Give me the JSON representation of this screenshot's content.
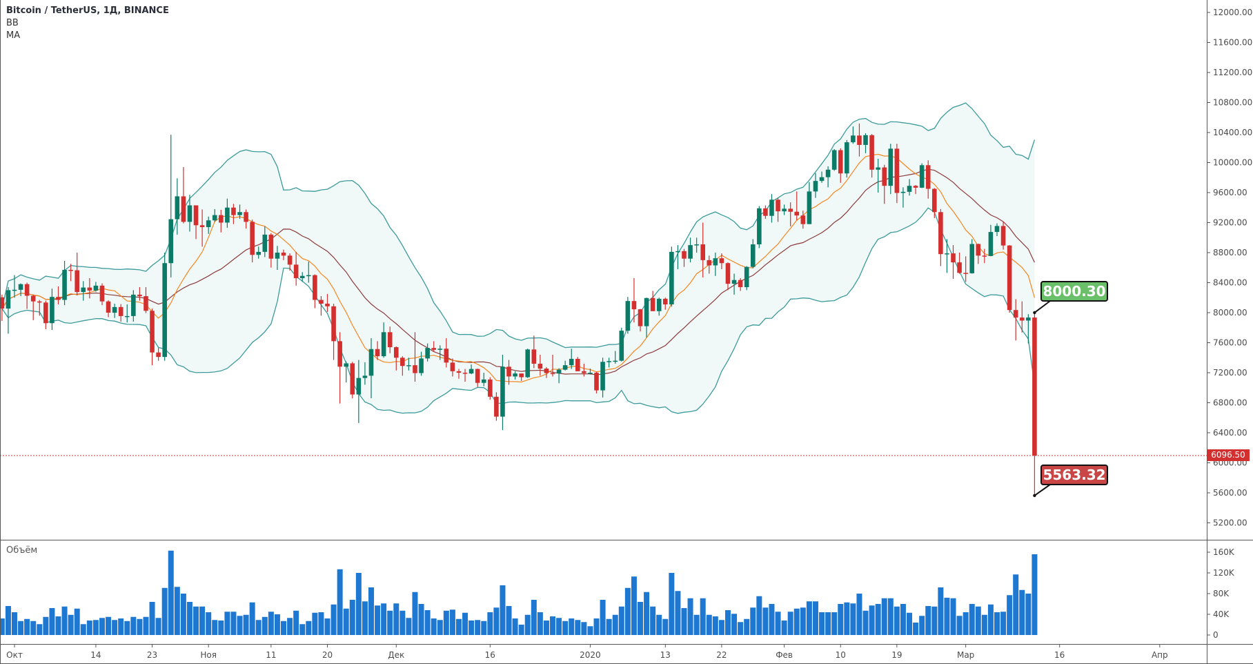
{
  "legend": {
    "title": "Bitcoin / TetherUS, 1Д, BINANCE",
    "bb": "BB",
    "ma": "MA"
  },
  "volume_title": "Объём",
  "colors": {
    "up": "#0b7b68",
    "down": "#d32f2f",
    "band_line": "#3b9a9a",
    "band_fill": "#f1f8f8",
    "ma_fast": "#f5861f",
    "ma_slow": "#8b3a3a",
    "volume": "#1e78d2",
    "last_price": "#d32f2f",
    "high_label": "#6abf69",
    "low_label": "#c94646"
  },
  "chart_data": {
    "type": "candlestick",
    "title": "Bitcoin / TetherUS, 1Д, BINANCE",
    "indicators": [
      "BB",
      "MA"
    ],
    "ylim": [
      5000,
      12200
    ],
    "y_ticks": [
      "5200.00",
      "5600.00",
      "6000.00",
      "6400.00",
      "6800.00",
      "7200.00",
      "7600.00",
      "8000.00",
      "8400.00",
      "8800.00",
      "9200.00",
      "9600.00",
      "10000.00",
      "10400.00",
      "10800.00",
      "11200.00",
      "11600.00",
      "12000.00"
    ],
    "volume_ticks": [
      "0",
      "40K",
      "80K",
      "120K",
      "160K"
    ],
    "x_ticks": [
      {
        "label": "Окт",
        "day": 2
      },
      {
        "label": "14",
        "day": 15
      },
      {
        "label": "23",
        "day": 24
      },
      {
        "label": "Ноя",
        "day": 33
      },
      {
        "label": "11",
        "day": 43
      },
      {
        "label": "20",
        "day": 52
      },
      {
        "label": "Дек",
        "day": 63
      },
      {
        "label": "16",
        "day": 78
      },
      {
        "label": "2020",
        "day": 94
      },
      {
        "label": "13",
        "day": 106
      },
      {
        "label": "22",
        "day": 115
      },
      {
        "label": "Фев",
        "day": 125
      },
      {
        "label": "10",
        "day": 134
      },
      {
        "label": "19",
        "day": 143
      },
      {
        "label": "Мар",
        "day": 154
      },
      {
        "label": "16",
        "day": 169
      },
      {
        "label": "Апр",
        "day": 185
      }
    ],
    "last_price": "6096.50",
    "high_label": "8000.30",
    "low_label": "5563.32",
    "ohlc": [
      [
        8205,
        8240,
        7890,
        8055
      ],
      [
        8055,
        8340,
        7720,
        8300
      ],
      [
        8300,
        8500,
        8200,
        8305
      ],
      [
        8305,
        8390,
        8220,
        8380
      ],
      [
        8380,
        8400,
        8050,
        8225
      ],
      [
        8225,
        8240,
        7900,
        8150
      ],
      [
        8150,
        8170,
        7960,
        8135
      ],
      [
        8135,
        8160,
        7780,
        7860
      ],
      [
        7860,
        8320,
        7770,
        8210
      ],
      [
        8210,
        8350,
        8110,
        8170
      ],
      [
        8170,
        8690,
        8100,
        8570
      ],
      [
        8570,
        8650,
        8420,
        8565
      ],
      [
        8565,
        8800,
        8230,
        8275
      ],
      [
        8275,
        8420,
        8160,
        8335
      ],
      [
        8335,
        8460,
        8190,
        8295
      ],
      [
        8295,
        8410,
        8280,
        8360
      ],
      [
        8360,
        8390,
        8100,
        8150
      ],
      [
        8150,
        8165,
        7940,
        8000
      ],
      [
        8000,
        8120,
        7930,
        8075
      ],
      [
        8075,
        8115,
        7880,
        7955
      ],
      [
        7955,
        8110,
        7870,
        7955
      ],
      [
        7955,
        8300,
        7880,
        8240
      ],
      [
        8240,
        8340,
        8160,
        8220
      ],
      [
        8220,
        8340,
        7995,
        8025
      ],
      [
        8025,
        8055,
        7300,
        7470
      ],
      [
        7470,
        7530,
        7360,
        7410
      ],
      [
        7410,
        8800,
        7360,
        8660
      ],
      [
        8660,
        10370,
        8470,
        9245
      ],
      [
        9245,
        9790,
        9040,
        9550
      ],
      [
        9550,
        9940,
        9190,
        9210
      ],
      [
        9210,
        9570,
        9080,
        9430
      ],
      [
        9430,
        9430,
        8980,
        9165
      ],
      [
        9165,
        9375,
        8880,
        9140
      ],
      [
        9140,
        9280,
        9050,
        9230
      ],
      [
        9230,
        9380,
        9210,
        9300
      ],
      [
        9300,
        9370,
        9070,
        9200
      ],
      [
        9200,
        9520,
        9130,
        9400
      ],
      [
        9400,
        9450,
        9180,
        9300
      ],
      [
        9300,
        9440,
        9250,
        9340
      ],
      [
        9340,
        9375,
        9120,
        9210
      ],
      [
        9210,
        9240,
        8670,
        8770
      ],
      [
        8770,
        8880,
        8720,
        8810
      ],
      [
        8810,
        9150,
        8740,
        9040
      ],
      [
        9040,
        9060,
        8600,
        8720
      ],
      [
        8720,
        8890,
        8570,
        8800
      ],
      [
        8800,
        8840,
        8700,
        8760
      ],
      [
        8760,
        8790,
        8560,
        8640
      ],
      [
        8640,
        8810,
        8360,
        8460
      ],
      [
        8460,
        8540,
        8410,
        8490
      ],
      [
        8490,
        8680,
        8400,
        8500
      ],
      [
        8500,
        8510,
        8060,
        8170
      ],
      [
        8170,
        8220,
        7960,
        8120
      ],
      [
        8120,
        8250,
        8010,
        8085
      ],
      [
        8085,
        8120,
        7370,
        7620
      ],
      [
        7620,
        7740,
        6790,
        7280
      ],
      [
        7280,
        7350,
        7070,
        7325
      ],
      [
        7325,
        7345,
        6860,
        6910
      ],
      [
        6910,
        7370,
        6530,
        7130
      ],
      [
        7130,
        7340,
        7040,
        7160
      ],
      [
        7160,
        7660,
        6860,
        7515
      ],
      [
        7515,
        7620,
        7370,
        7420
      ],
      [
        7420,
        7870,
        7400,
        7740
      ],
      [
        7740,
        7815,
        7460,
        7540
      ],
      [
        7540,
        7550,
        7230,
        7400
      ],
      [
        7400,
        7420,
        7160,
        7290
      ],
      [
        7290,
        7400,
        7230,
        7300
      ],
      [
        7300,
        7740,
        7080,
        7195
      ],
      [
        7195,
        7480,
        7160,
        7390
      ],
      [
        7390,
        7590,
        7350,
        7530
      ],
      [
        7530,
        7620,
        7480,
        7505
      ],
      [
        7505,
        7565,
        7370,
        7520
      ],
      [
        7520,
        7660,
        7270,
        7335
      ],
      [
        7335,
        7390,
        7150,
        7220
      ],
      [
        7220,
        7250,
        7120,
        7200
      ],
      [
        7200,
        7250,
        7080,
        7190
      ],
      [
        7190,
        7310,
        7180,
        7250
      ],
      [
        7250,
        7255,
        7010,
        7065
      ],
      [
        7065,
        7200,
        7020,
        7110
      ],
      [
        7110,
        7140,
        6840,
        6880
      ],
      [
        6880,
        6940,
        6560,
        6615
      ],
      [
        6615,
        7440,
        6435,
        7280
      ],
      [
        7280,
        7370,
        7040,
        7150
      ],
      [
        7150,
        7220,
        7110,
        7190
      ],
      [
        7190,
        7190,
        7090,
        7140
      ],
      [
        7140,
        7520,
        7130,
        7510
      ],
      [
        7510,
        7695,
        7260,
        7320
      ],
      [
        7320,
        7440,
        7160,
        7255
      ],
      [
        7255,
        7275,
        7130,
        7195
      ],
      [
        7195,
        7440,
        7150,
        7190
      ],
      [
        7190,
        7260,
        7060,
        7240
      ],
      [
        7240,
        7360,
        7230,
        7300
      ],
      [
        7300,
        7520,
        7250,
        7385
      ],
      [
        7385,
        7410,
        7220,
        7220
      ],
      [
        7220,
        7320,
        7150,
        7195
      ],
      [
        7195,
        7255,
        7175,
        7200
      ],
      [
        7200,
        7215,
        6925,
        6965
      ],
      [
        6965,
        7400,
        6870,
        7345
      ],
      [
        7345,
        7400,
        7270,
        7355
      ],
      [
        7355,
        7490,
        7320,
        7360
      ],
      [
        7360,
        7800,
        7350,
        7760
      ],
      [
        7760,
        8210,
        7720,
        8155
      ],
      [
        8155,
        8460,
        7870,
        8045
      ],
      [
        8045,
        8050,
        7750,
        7820
      ],
      [
        7820,
        8200,
        7670,
        8195
      ],
      [
        8195,
        8290,
        8020,
        8020
      ],
      [
        8020,
        8200,
        7960,
        8185
      ],
      [
        8185,
        8200,
        8040,
        8110
      ],
      [
        8110,
        8880,
        8080,
        8810
      ],
      [
        8810,
        8900,
        8580,
        8820
      ],
      [
        8820,
        8850,
        8610,
        8720
      ],
      [
        8720,
        9000,
        8670,
        8900
      ],
      [
        8900,
        9000,
        8800,
        8910
      ],
      [
        8910,
        9200,
        8470,
        8700
      ],
      [
        8700,
        8760,
        8520,
        8630
      ],
      [
        8630,
        8800,
        8490,
        8725
      ],
      [
        8725,
        8790,
        8580,
        8660
      ],
      [
        8660,
        8670,
        8300,
        8385
      ],
      [
        8385,
        8520,
        8240,
        8435
      ],
      [
        8435,
        8460,
        8290,
        8340
      ],
      [
        8340,
        8620,
        8300,
        8610
      ],
      [
        8610,
        8980,
        8590,
        8910
      ],
      [
        8910,
        9420,
        8860,
        9390
      ],
      [
        9390,
        9430,
        9250,
        9290
      ],
      [
        9290,
        9580,
        9200,
        9505
      ],
      [
        9505,
        9530,
        9210,
        9350
      ],
      [
        9350,
        9440,
        9300,
        9385
      ],
      [
        9385,
        9470,
        9150,
        9345
      ],
      [
        9345,
        9615,
        9230,
        9295
      ],
      [
        9295,
        9360,
        9120,
        9180
      ],
      [
        9180,
        9740,
        9180,
        9615
      ],
      [
        9615,
        9860,
        9530,
        9755
      ],
      [
        9755,
        9880,
        9730,
        9805
      ],
      [
        9805,
        9950,
        9670,
        9905
      ],
      [
        9905,
        10180,
        9890,
        10165
      ],
      [
        10165,
        10190,
        9730,
        9855
      ],
      [
        9855,
        10300,
        9800,
        10270
      ],
      [
        10270,
        10480,
        10250,
        10360
      ],
      [
        10360,
        10520,
        10080,
        10235
      ],
      [
        10235,
        10390,
        10125,
        10365
      ],
      [
        10365,
        10380,
        9800,
        9905
      ],
      [
        9905,
        10050,
        9600,
        9935
      ],
      [
        9935,
        9970,
        9450,
        9690
      ],
      [
        9690,
        10250,
        9580,
        10185
      ],
      [
        10185,
        10250,
        9460,
        9595
      ],
      [
        9595,
        9670,
        9400,
        9610
      ],
      [
        9610,
        9780,
        9560,
        9690
      ],
      [
        9690,
        9700,
        9580,
        9665
      ],
      [
        9665,
        9990,
        9660,
        9965
      ],
      [
        9965,
        10030,
        9520,
        9650
      ],
      [
        9650,
        9660,
        9260,
        9340
      ],
      [
        9340,
        9380,
        8620,
        8780
      ],
      [
        8780,
        8980,
        8530,
        8790
      ],
      [
        8790,
        8900,
        8450,
        8670
      ],
      [
        8670,
        8800,
        8520,
        8530
      ],
      [
        8530,
        8750,
        8410,
        8525
      ],
      [
        8525,
        8980,
        8520,
        8915
      ],
      [
        8915,
        8920,
        8650,
        8760
      ],
      [
        8760,
        8850,
        8660,
        8755
      ],
      [
        8755,
        9170,
        8755,
        9075
      ],
      [
        9075,
        9190,
        9020,
        9155
      ],
      [
        9155,
        9210,
        8840,
        8895
      ],
      [
        8895,
        8900,
        8000,
        8035
      ],
      [
        8035,
        8180,
        7630,
        7935
      ],
      [
        7935,
        8150,
        7735,
        7895
      ],
      [
        7895,
        7980,
        7590,
        7935
      ],
      [
        7935,
        8000.3,
        5563.32,
        6096.5
      ]
    ],
    "volume_k": [
      32,
      56,
      44,
      27,
      31,
      27,
      21,
      35,
      52,
      36,
      55,
      39,
      51,
      21,
      28,
      29,
      33,
      35,
      29,
      32,
      27,
      35,
      31,
      35,
      64,
      33,
      91,
      163,
      93,
      80,
      64,
      55,
      55,
      44,
      29,
      28,
      45,
      45,
      37,
      39,
      63,
      29,
      35,
      45,
      40,
      27,
      33,
      47,
      21,
      27,
      43,
      44,
      32,
      59,
      127,
      51,
      68,
      120,
      65,
      92,
      57,
      61,
      47,
      61,
      47,
      33,
      83,
      60,
      48,
      32,
      29,
      47,
      49,
      31,
      43,
      28,
      29,
      27,
      44,
      53,
      96,
      56,
      32,
      20,
      39,
      68,
      44,
      28,
      36,
      33,
      27,
      32,
      29,
      25,
      17,
      32,
      68,
      31,
      39,
      55,
      91,
      113,
      64,
      83,
      55,
      39,
      31,
      120,
      85,
      52,
      71,
      39,
      71,
      39,
      36,
      29,
      48,
      41,
      25,
      31,
      53,
      75,
      53,
      60,
      45,
      28,
      45,
      51,
      53,
      65,
      65,
      44,
      44,
      44,
      60,
      63,
      61,
      80,
      47,
      57,
      60,
      71,
      71,
      55,
      60,
      43,
      24,
      37,
      56,
      55,
      92,
      72,
      71,
      37,
      44,
      60,
      55,
      39,
      59,
      44,
      45,
      77,
      117,
      87,
      80,
      156
    ],
    "bb": {
      "length": 20,
      "mult": 2
    },
    "ma": {
      "fast": 9,
      "slow": 20
    }
  }
}
